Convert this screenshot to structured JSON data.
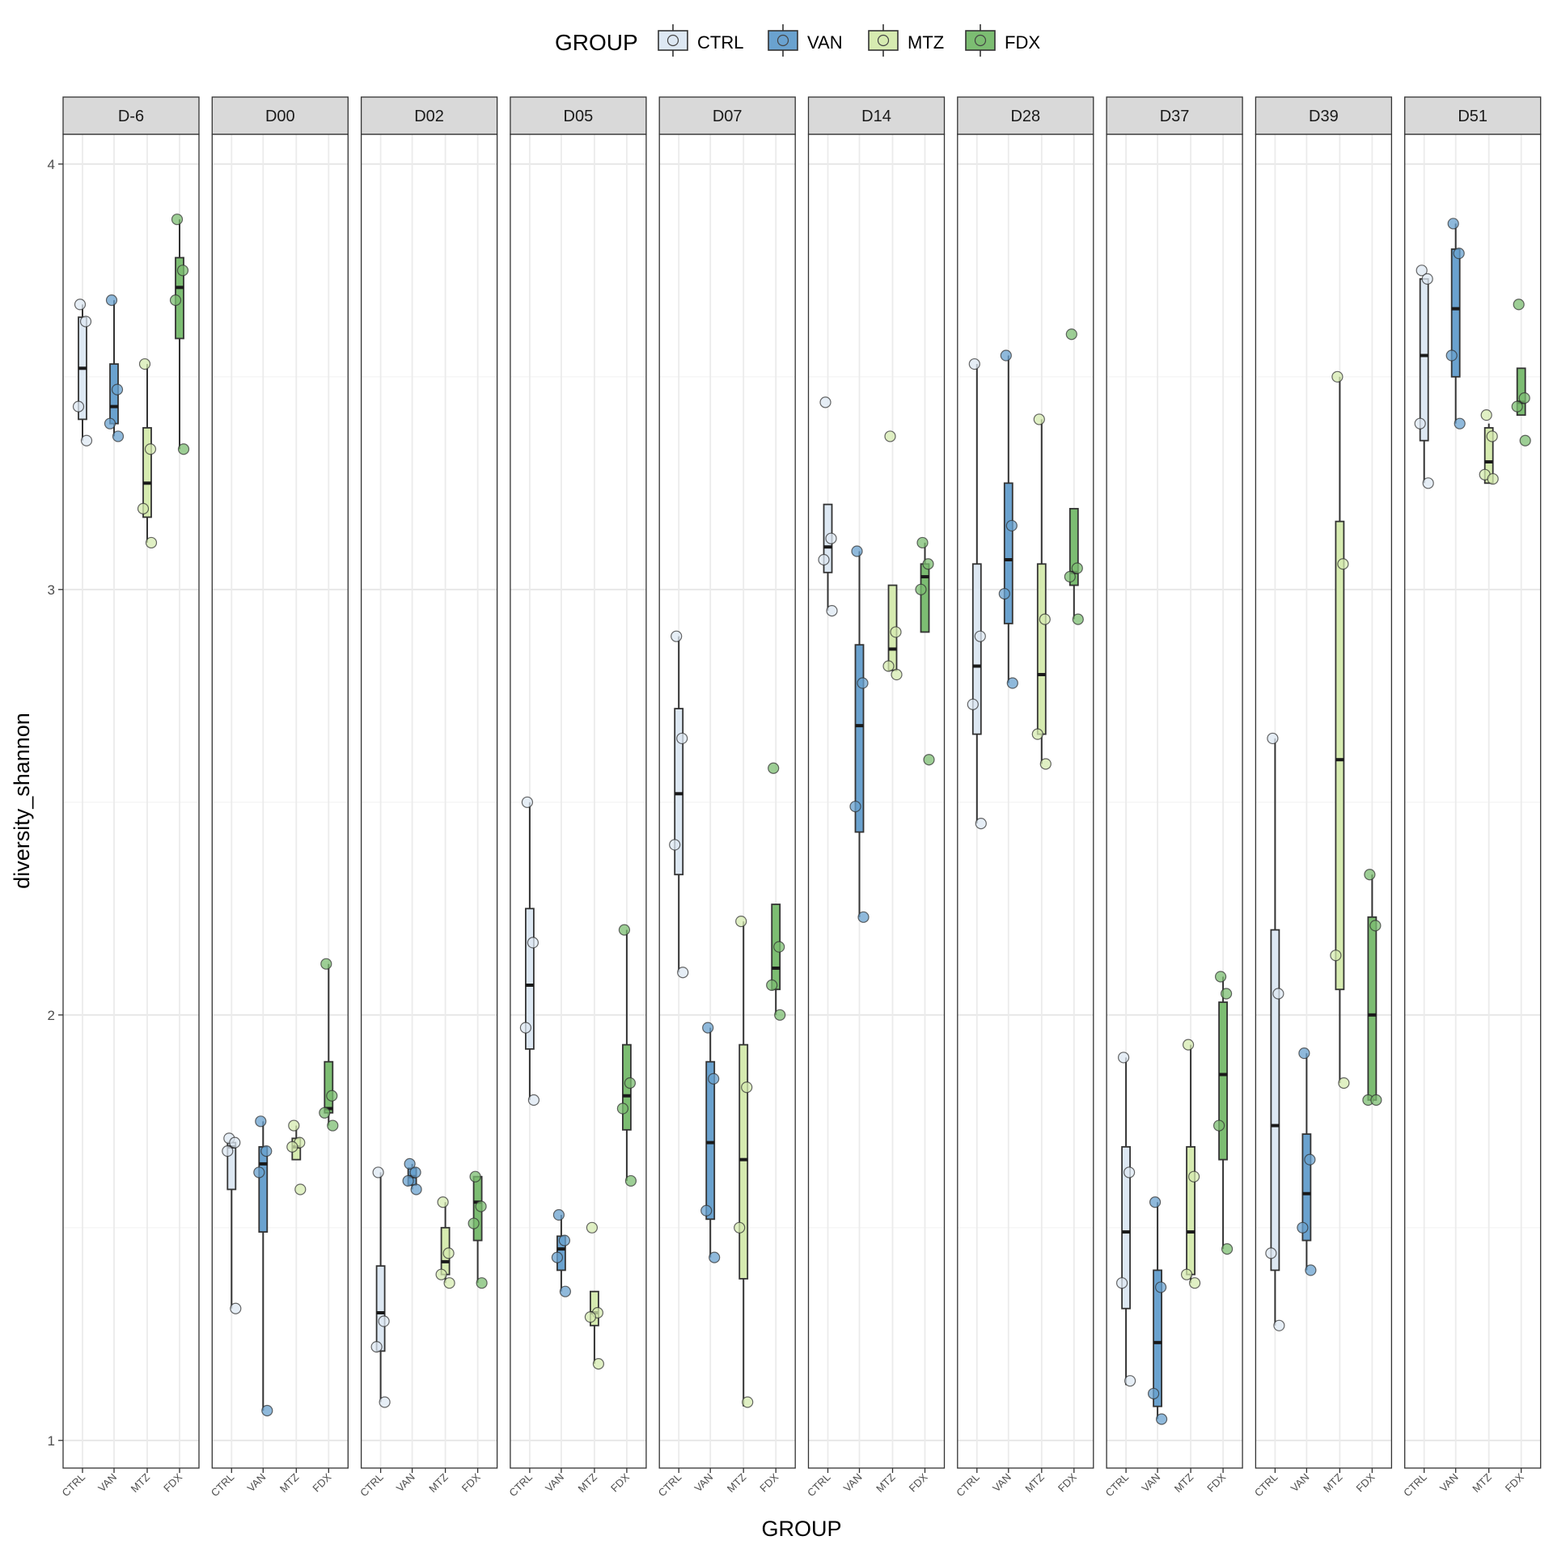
{
  "chart_data": {
    "type": "box",
    "xlabel": "GROUP",
    "ylabel": "diversity_shannon",
    "yticks": [
      1,
      2,
      3,
      4
    ],
    "ylim": [
      0.935,
      4.07
    ],
    "grid": true,
    "legend": {
      "title": "GROUP",
      "placement": "top",
      "entries": [
        "CTRL",
        "VAN",
        "MTZ",
        "FDX"
      ]
    },
    "groups": [
      "CTRL",
      "VAN",
      "MTZ",
      "FDX"
    ],
    "colors": {
      "CTRL": "#dde8f3",
      "VAN": "#6aa2cf",
      "MTZ": "#d6ebb0",
      "FDX": "#7cbd72"
    },
    "facets": [
      {
        "label": "D-6",
        "boxes": {
          "CTRL": {
            "q1": 3.4,
            "median": 3.52,
            "q3": 3.64,
            "lower": 3.35,
            "upper": 3.67,
            "points": [
              3.67,
              3.63,
              3.43,
              3.35
            ]
          },
          "VAN": {
            "q1": 3.39,
            "median": 3.43,
            "q3": 3.53,
            "lower": 3.36,
            "upper": 3.68,
            "points": [
              3.68,
              3.47,
              3.39,
              3.36
            ]
          },
          "MTZ": {
            "q1": 3.17,
            "median": 3.25,
            "q3": 3.38,
            "lower": 3.11,
            "upper": 3.53,
            "points": [
              3.53,
              3.33,
              3.19,
              3.11
            ]
          },
          "FDX": {
            "q1": 3.59,
            "median": 3.71,
            "q3": 3.78,
            "lower": 3.33,
            "upper": 3.87,
            "points": [
              3.87,
              3.75,
              3.68,
              3.33
            ]
          }
        }
      },
      {
        "label": "D00",
        "boxes": {
          "CTRL": {
            "q1": 1.59,
            "median": 1.69,
            "q3": 1.7,
            "lower": 1.31,
            "upper": 1.71,
            "points": [
              1.71,
              1.7,
              1.68,
              1.31
            ]
          },
          "VAN": {
            "q1": 1.49,
            "median": 1.65,
            "q3": 1.69,
            "lower": 1.07,
            "upper": 1.75,
            "points": [
              1.75,
              1.68,
              1.63,
              1.07
            ]
          },
          "MTZ": {
            "q1": 1.66,
            "median": 1.69,
            "q3": 1.71,
            "lower": 1.66,
            "upper": 1.74,
            "points": [
              1.74,
              1.7,
              1.69,
              1.59
            ]
          },
          "FDX": {
            "q1": 1.77,
            "median": 1.78,
            "q3": 1.89,
            "lower": 1.74,
            "upper": 2.12,
            "points": [
              2.12,
              1.81,
              1.77,
              1.74
            ]
          }
        }
      },
      {
        "label": "D02",
        "boxes": {
          "CTRL": {
            "q1": 1.21,
            "median": 1.3,
            "q3": 1.41,
            "lower": 1.09,
            "upper": 1.63,
            "points": [
              1.63,
              1.28,
              1.22,
              1.09
            ]
          },
          "VAN": {
            "q1": 1.6,
            "median": 1.62,
            "q3": 1.64,
            "lower": 1.59,
            "upper": 1.65,
            "points": [
              1.65,
              1.63,
              1.61,
              1.59
            ]
          },
          "MTZ": {
            "q1": 1.39,
            "median": 1.42,
            "q3": 1.5,
            "lower": 1.37,
            "upper": 1.56,
            "points": [
              1.56,
              1.44,
              1.39,
              1.37
            ]
          },
          "FDX": {
            "q1": 1.47,
            "median": 1.56,
            "q3": 1.62,
            "lower": 1.37,
            "upper": 1.62,
            "points": [
              1.62,
              1.55,
              1.51,
              1.37
            ]
          }
        }
      },
      {
        "label": "D05",
        "boxes": {
          "CTRL": {
            "q1": 1.92,
            "median": 2.07,
            "q3": 2.25,
            "lower": 1.8,
            "upper": 2.5,
            "points": [
              2.5,
              2.17,
              1.97,
              1.8
            ]
          },
          "VAN": {
            "q1": 1.4,
            "median": 1.45,
            "q3": 1.48,
            "lower": 1.35,
            "upper": 1.53,
            "points": [
              1.53,
              1.47,
              1.43,
              1.35
            ]
          },
          "MTZ": {
            "q1": 1.27,
            "median": 1.3,
            "q3": 1.35,
            "lower": 1.18,
            "upper": 1.35,
            "points": [
              1.5,
              1.3,
              1.29,
              1.18
            ]
          },
          "FDX": {
            "q1": 1.73,
            "median": 1.81,
            "q3": 1.93,
            "lower": 1.61,
            "upper": 2.2,
            "points": [
              2.2,
              1.84,
              1.78,
              1.61
            ]
          }
        }
      },
      {
        "label": "D07",
        "boxes": {
          "CTRL": {
            "q1": 2.33,
            "median": 2.52,
            "q3": 2.72,
            "lower": 2.1,
            "upper": 2.89,
            "points": [
              2.89,
              2.65,
              2.4,
              2.1
            ]
          },
          "VAN": {
            "q1": 1.52,
            "median": 1.7,
            "q3": 1.89,
            "lower": 1.43,
            "upper": 1.97,
            "points": [
              1.97,
              1.85,
              1.54,
              1.43
            ]
          },
          "MTZ": {
            "q1": 1.38,
            "median": 1.66,
            "q3": 1.93,
            "lower": 1.08,
            "upper": 2.22,
            "points": [
              2.22,
              1.83,
              1.5,
              1.09
            ]
          },
          "FDX": {
            "q1": 2.06,
            "median": 2.11,
            "q3": 2.26,
            "lower": 2.0,
            "upper": 2.26,
            "points": [
              2.58,
              2.16,
              2.07,
              2.0
            ]
          }
        }
      },
      {
        "label": "D14",
        "boxes": {
          "CTRL": {
            "q1": 3.04,
            "median": 3.1,
            "q3": 3.2,
            "lower": 2.95,
            "upper": 3.2,
            "points": [
              3.44,
              3.12,
              3.07,
              2.95
            ]
          },
          "VAN": {
            "q1": 2.43,
            "median": 2.68,
            "q3": 2.87,
            "lower": 2.23,
            "upper": 3.09,
            "points": [
              3.09,
              2.78,
              2.49,
              2.23
            ]
          },
          "MTZ": {
            "q1": 2.81,
            "median": 2.86,
            "q3": 3.01,
            "lower": 2.81,
            "upper": 3.01,
            "points": [
              3.36,
              2.9,
              2.82,
              2.8
            ]
          },
          "FDX": {
            "q1": 2.9,
            "median": 3.03,
            "q3": 3.06,
            "lower": 2.9,
            "upper": 3.11,
            "points": [
              3.11,
              3.06,
              3.0,
              2.6
            ]
          }
        }
      },
      {
        "label": "D28",
        "boxes": {
          "CTRL": {
            "q1": 2.66,
            "median": 2.82,
            "q3": 3.06,
            "lower": 2.45,
            "upper": 3.53,
            "points": [
              3.53,
              2.89,
              2.73,
              2.45
            ]
          },
          "VAN": {
            "q1": 2.92,
            "median": 3.07,
            "q3": 3.25,
            "lower": 2.78,
            "upper": 3.55,
            "points": [
              3.55,
              3.15,
              2.99,
              2.78
            ]
          },
          "MTZ": {
            "q1": 2.66,
            "median": 2.8,
            "q3": 3.06,
            "lower": 2.59,
            "upper": 3.4,
            "points": [
              3.4,
              2.93,
              2.66,
              2.59
            ]
          },
          "FDX": {
            "q1": 3.01,
            "median": 3.04,
            "q3": 3.19,
            "lower": 2.93,
            "upper": 3.19,
            "points": [
              3.6,
              3.05,
              3.03,
              2.93
            ]
          }
        }
      },
      {
        "label": "D37",
        "boxes": {
          "CTRL": {
            "q1": 1.31,
            "median": 1.49,
            "q3": 1.69,
            "lower": 1.13,
            "upper": 1.9,
            "points": [
              1.9,
              1.63,
              1.37,
              1.14
            ]
          },
          "VAN": {
            "q1": 1.08,
            "median": 1.23,
            "q3": 1.4,
            "lower": 1.05,
            "upper": 1.56,
            "points": [
              1.56,
              1.36,
              1.11,
              1.05
            ]
          },
          "MTZ": {
            "q1": 1.39,
            "median": 1.49,
            "q3": 1.69,
            "lower": 1.37,
            "upper": 1.93,
            "points": [
              1.93,
              1.62,
              1.39,
              1.37
            ]
          },
          "FDX": {
            "q1": 1.66,
            "median": 1.86,
            "q3": 2.03,
            "lower": 1.45,
            "upper": 2.09,
            "points": [
              2.09,
              2.05,
              1.74,
              1.45
            ]
          }
        }
      },
      {
        "label": "D39",
        "boxes": {
          "CTRL": {
            "q1": 1.4,
            "median": 1.74,
            "q3": 2.2,
            "lower": 1.27,
            "upper": 2.65,
            "points": [
              2.65,
              2.05,
              1.44,
              1.27
            ]
          },
          "VAN": {
            "q1": 1.47,
            "median": 1.58,
            "q3": 1.72,
            "lower": 1.4,
            "upper": 1.91,
            "points": [
              1.91,
              1.66,
              1.5,
              1.4
            ]
          },
          "MTZ": {
            "q1": 2.06,
            "median": 2.6,
            "q3": 3.16,
            "lower": 1.84,
            "upper": 3.5,
            "points": [
              3.5,
              3.06,
              2.14,
              1.84
            ]
          },
          "FDX": {
            "q1": 1.8,
            "median": 2.0,
            "q3": 2.23,
            "lower": 1.8,
            "upper": 2.33,
            "points": [
              2.33,
              2.21,
              1.8,
              1.8
            ]
          }
        }
      },
      {
        "label": "D51",
        "boxes": {
          "CTRL": {
            "q1": 3.35,
            "median": 3.55,
            "q3": 3.73,
            "lower": 3.25,
            "upper": 3.73,
            "points": [
              3.75,
              3.73,
              3.39,
              3.25
            ]
          },
          "VAN": {
            "q1": 3.5,
            "median": 3.66,
            "q3": 3.8,
            "lower": 3.39,
            "upper": 3.86,
            "points": [
              3.86,
              3.79,
              3.55,
              3.39
            ]
          },
          "MTZ": {
            "q1": 3.25,
            "median": 3.3,
            "q3": 3.38,
            "lower": 3.25,
            "upper": 3.39,
            "points": [
              3.41,
              3.36,
              3.27,
              3.26
            ]
          },
          "FDX": {
            "q1": 3.41,
            "median": 3.44,
            "q3": 3.52,
            "lower": 3.41,
            "upper": 3.52,
            "points": [
              3.67,
              3.45,
              3.43,
              3.35
            ]
          }
        }
      }
    ]
  }
}
